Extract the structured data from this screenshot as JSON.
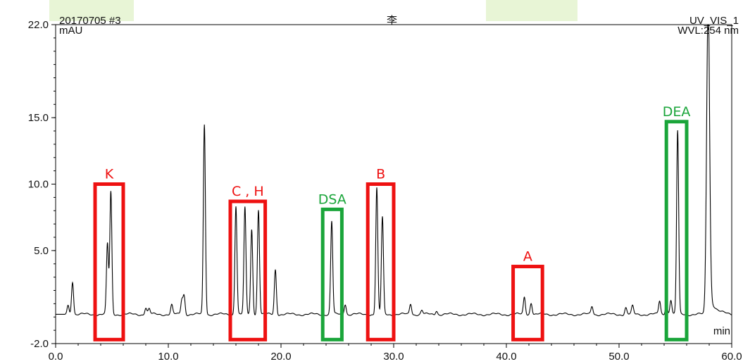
{
  "header": {
    "run_id": "20170705 #3",
    "sample_name": "李",
    "channel": "UV_VIS_1",
    "y_unit": "mAU",
    "wavelength": "WVL:254 nm"
  },
  "colors": {
    "trace": "#000000",
    "red_box": "#ee1111",
    "green_box": "#1aa53a",
    "background_band": "#e8f5d6"
  },
  "chart_data": {
    "type": "line",
    "title": "李",
    "xlabel": "min",
    "ylabel": "mAU",
    "xlim": [
      0.0,
      60.0
    ],
    "ylim": [
      -2.0,
      22.0
    ],
    "x_ticks": [
      "0.0",
      "10.0",
      "20.0",
      "30.0",
      "40.0",
      "50.0",
      "60.0"
    ],
    "y_ticks": [
      "-2.0",
      "5.0",
      "10.0",
      "15.0",
      "22.0"
    ],
    "grid": false,
    "baseline": 0.2,
    "peaks": [
      {
        "rt": 1.1,
        "height": 0.7
      },
      {
        "rt": 1.5,
        "height": 2.5
      },
      {
        "rt": 4.6,
        "height": 5.3
      },
      {
        "rt": 4.9,
        "height": 9.2
      },
      {
        "rt": 8.0,
        "height": 0.5
      },
      {
        "rt": 8.3,
        "height": 0.4
      },
      {
        "rt": 10.3,
        "height": 0.7
      },
      {
        "rt": 11.2,
        "height": 1.1
      },
      {
        "rt": 11.4,
        "height": 1.4
      },
      {
        "rt": 13.2,
        "height": 14.3
      },
      {
        "rt": 16.0,
        "height": 8.2
      },
      {
        "rt": 16.8,
        "height": 8.0
      },
      {
        "rt": 17.4,
        "height": 6.4
      },
      {
        "rt": 18.0,
        "height": 7.9
      },
      {
        "rt": 19.5,
        "height": 3.4
      },
      {
        "rt": 24.5,
        "height": 7.0
      },
      {
        "rt": 25.7,
        "height": 0.8
      },
      {
        "rt": 28.5,
        "height": 9.5
      },
      {
        "rt": 29.0,
        "height": 7.3
      },
      {
        "rt": 31.5,
        "height": 0.8
      },
      {
        "rt": 32.5,
        "height": 0.3
      },
      {
        "rt": 33.8,
        "height": 0.3
      },
      {
        "rt": 41.6,
        "height": 1.3
      },
      {
        "rt": 42.2,
        "height": 0.9
      },
      {
        "rt": 47.6,
        "height": 0.6
      },
      {
        "rt": 50.6,
        "height": 0.5
      },
      {
        "rt": 51.2,
        "height": 0.6
      },
      {
        "rt": 53.6,
        "height": 1.0
      },
      {
        "rt": 54.2,
        "height": 0.9
      },
      {
        "rt": 54.6,
        "height": 1.1
      },
      {
        "rt": 55.2,
        "height": 13.8
      },
      {
        "rt": 57.9,
        "height": 23.0
      }
    ],
    "annotations": [
      {
        "label": "K",
        "color": "red",
        "x_range": [
          3.5,
          6.0
        ],
        "y_range": [
          -1.7,
          10.0
        ]
      },
      {
        "label": "C , H",
        "color": "red",
        "x_range": [
          15.5,
          18.6
        ],
        "y_range": [
          -1.7,
          8.7
        ]
      },
      {
        "label": "DSA",
        "color": "green",
        "x_range": [
          23.7,
          25.4
        ],
        "y_range": [
          -1.7,
          8.1
        ]
      },
      {
        "label": "B",
        "color": "red",
        "x_range": [
          27.7,
          30.0
        ],
        "y_range": [
          -1.7,
          10.0
        ]
      },
      {
        "label": "A",
        "color": "red",
        "x_range": [
          40.6,
          43.2
        ],
        "y_range": [
          -1.7,
          3.8
        ]
      },
      {
        "label": "DEA",
        "color": "green",
        "x_range": [
          54.2,
          56.0
        ],
        "y_range": [
          -1.7,
          14.7
        ]
      }
    ]
  }
}
